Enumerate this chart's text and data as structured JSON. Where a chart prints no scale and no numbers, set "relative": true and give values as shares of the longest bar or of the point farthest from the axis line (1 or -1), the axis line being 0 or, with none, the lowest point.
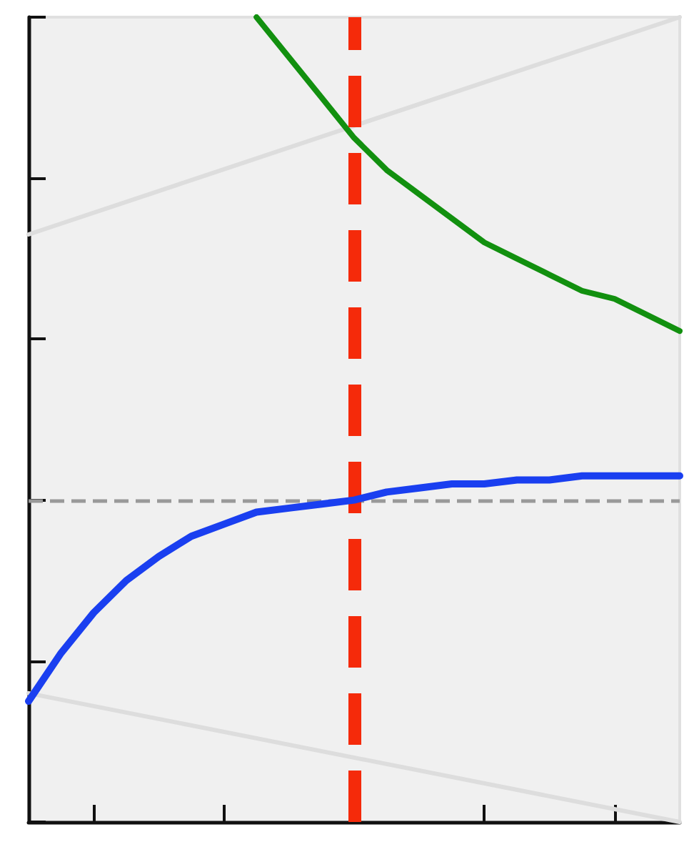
{
  "chart_data": {
    "type": "line",
    "relative": true,
    "categories": [
      null,
      null,
      null,
      null,
      null,
      null,
      null,
      null,
      null,
      null,
      null,
      null,
      null,
      null,
      null,
      null,
      null,
      null,
      null,
      null,
      null
    ],
    "series": [
      {
        "color": "#dddddd",
        "values": [
          0.73,
          null,
          null,
          null,
          null,
          null,
          null,
          null,
          null,
          null,
          null,
          null,
          null,
          null,
          null,
          null,
          null,
          null,
          null,
          null,
          1.0
        ]
      },
      {
        "color": "#dddddd",
        "values": [
          0.16,
          null,
          null,
          null,
          null,
          null,
          null,
          null,
          null,
          null,
          null,
          null,
          null,
          null,
          null,
          null,
          null,
          null,
          null,
          null,
          0
        ]
      },
      {
        "color": "#12900f",
        "values": [
          null,
          null,
          null,
          null,
          null,
          null,
          null,
          1.0,
          0.95,
          0.9,
          0.85,
          0.81,
          0.78,
          0.75,
          0.72,
          0.7,
          0.68,
          0.66,
          0.65,
          0.63,
          0.61
        ]
      },
      {
        "color": "#1a3ff0",
        "values": [
          0.15,
          0.21,
          0.26,
          0.3,
          0.33,
          0.355,
          0.37,
          0.385,
          0.39,
          0.395,
          0.4,
          0.41,
          0.415,
          0.42,
          0.42,
          0.425,
          0.425,
          0.43,
          0.43,
          0.43,
          0.43
        ]
      }
    ],
    "ref_lines": [
      {
        "axis": "y",
        "value": 0.4,
        "color": "#999999",
        "line_style": "dashed"
      }
    ],
    "grid": false,
    "marker": "none",
    "line_style": "solid"
  }
}
